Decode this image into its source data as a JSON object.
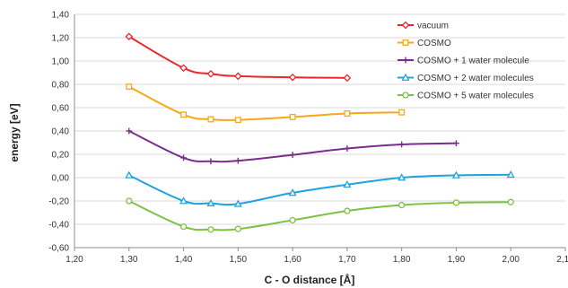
{
  "chart_data": {
    "type": "line",
    "title": "",
    "xlabel": "C - O distance [Å]",
    "ylabel": "energy [eV]",
    "xlim": [
      1.2,
      2.1
    ],
    "ylim": [
      -0.6,
      1.4
    ],
    "xticks": [
      1.2,
      1.3,
      1.4,
      1.5,
      1.6,
      1.7,
      1.8,
      1.9,
      2.0,
      2.1
    ],
    "yticks": [
      -0.6,
      -0.4,
      -0.2,
      0.0,
      0.2,
      0.4,
      0.6,
      0.8,
      1.0,
      1.2,
      1.4
    ],
    "xtick_labels": [
      "1,20",
      "1,30",
      "1,40",
      "1,50",
      "1,60",
      "1,70",
      "1,80",
      "1,90",
      "2,00",
      "2,10"
    ],
    "ytick_labels": [
      "-0,60",
      "-0,40",
      "-0,20",
      "0,00",
      "0,20",
      "0,40",
      "0,60",
      "0,80",
      "1,00",
      "1,20",
      "1,40"
    ],
    "grid": "horizontal",
    "legend_position": "top-right",
    "series": [
      {
        "name": "vacuum",
        "color": "#e8262b",
        "marker": "diamond",
        "x": [
          1.3,
          1.4,
          1.45,
          1.5,
          1.6,
          1.7
        ],
        "y": [
          1.21,
          0.94,
          0.89,
          0.87,
          0.86,
          0.855
        ]
      },
      {
        "name": "COSMO",
        "color": "#f5a818",
        "marker": "square",
        "x": [
          1.3,
          1.4,
          1.45,
          1.5,
          1.6,
          1.7,
          1.8
        ],
        "y": [
          0.78,
          0.54,
          0.5,
          0.495,
          0.52,
          0.55,
          0.56
        ]
      },
      {
        "name": "COSMO + 1 water molecule",
        "color": "#7b2c8c",
        "marker": "plus",
        "x": [
          1.3,
          1.4,
          1.45,
          1.5,
          1.6,
          1.7,
          1.8,
          1.9
        ],
        "y": [
          0.4,
          0.17,
          0.14,
          0.145,
          0.195,
          0.25,
          0.285,
          0.295
        ]
      },
      {
        "name": "COSMO + 2 water molecules",
        "color": "#1fa3dc",
        "marker": "triangle",
        "x": [
          1.3,
          1.4,
          1.45,
          1.5,
          1.6,
          1.7,
          1.8,
          1.9,
          2.0
        ],
        "y": [
          0.02,
          -0.2,
          -0.22,
          -0.225,
          -0.13,
          -0.06,
          0.0,
          0.02,
          0.025
        ]
      },
      {
        "name": "COSMO + 5 water molecules",
        "color": "#7dc142",
        "marker": "circle",
        "x": [
          1.3,
          1.4,
          1.45,
          1.5,
          1.6,
          1.7,
          1.8,
          1.9,
          2.0
        ],
        "y": [
          -0.2,
          -0.42,
          -0.445,
          -0.44,
          -0.365,
          -0.285,
          -0.235,
          -0.215,
          -0.21
        ]
      }
    ]
  }
}
